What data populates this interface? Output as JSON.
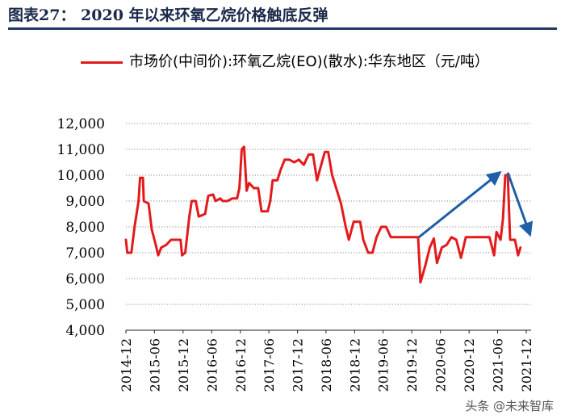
{
  "figure": {
    "title": "图表27：  2020 年以来环氧乙烷价格触底反弹"
  },
  "watermark": "头条 @未来智库",
  "colors": {
    "series": "#e31a1c",
    "arrow": "#1f5fa8",
    "grid": "#888888",
    "rule": "#1f3864"
  },
  "chart_data": {
    "type": "line",
    "title": "",
    "xlabel": "",
    "ylabel": "",
    "ylim": [
      4000,
      12000
    ],
    "yticks": [
      4000,
      5000,
      6000,
      7000,
      8000,
      9000,
      10000,
      11000,
      12000
    ],
    "ytick_labels": [
      "4,000",
      "5,000",
      "6,000",
      "7,000",
      "8,000",
      "9,000",
      "10,000",
      "11,000",
      "12,000"
    ],
    "xlim": [
      "2014-12",
      "2022-01"
    ],
    "xtick_labels": [
      "2014-12",
      "2015-06",
      "2015-12",
      "2016-06",
      "2016-12",
      "2017-06",
      "2017-12",
      "2018-06",
      "2018-12",
      "2019-06",
      "2019-12",
      "2020-06",
      "2020-12",
      "2021-06",
      "2021-12"
    ],
    "grid": "horizontal dotted",
    "legend": "top",
    "series": [
      {
        "name": "市场价(中间价):环氧乙烷(EO)(散水):华东地区（元/吨）",
        "points": [
          [
            "2014-12-01",
            7500
          ],
          [
            "2014-12-10",
            7000
          ],
          [
            "2015-01-05",
            7000
          ],
          [
            "2015-01-25",
            8000
          ],
          [
            "2015-02-20",
            9000
          ],
          [
            "2015-03-01",
            9900
          ],
          [
            "2015-03-20",
            9900
          ],
          [
            "2015-03-25",
            9000
          ],
          [
            "2015-04-25",
            8900
          ],
          [
            "2015-05-15",
            7900
          ],
          [
            "2015-06-10",
            7300
          ],
          [
            "2015-06-25",
            6900
          ],
          [
            "2015-07-15",
            7200
          ],
          [
            "2015-08-15",
            7300
          ],
          [
            "2015-09-15",
            7500
          ],
          [
            "2015-10-15",
            7500
          ],
          [
            "2015-11-15",
            7500
          ],
          [
            "2015-11-25",
            6900
          ],
          [
            "2015-12-15",
            7000
          ],
          [
            "2016-01-10",
            8400
          ],
          [
            "2016-01-25",
            9000
          ],
          [
            "2016-02-20",
            9000
          ],
          [
            "2016-03-10",
            8400
          ],
          [
            "2016-04-20",
            8500
          ],
          [
            "2016-05-10",
            9200
          ],
          [
            "2016-06-10",
            9250
          ],
          [
            "2016-06-25",
            9000
          ],
          [
            "2016-07-25",
            9100
          ],
          [
            "2016-08-10",
            9000
          ],
          [
            "2016-09-10",
            9000
          ],
          [
            "2016-10-10",
            9100
          ],
          [
            "2016-11-10",
            9100
          ],
          [
            "2016-11-25",
            9500
          ],
          [
            "2016-12-10",
            11000
          ],
          [
            "2016-12-25",
            11100
          ],
          [
            "2017-01-10",
            9400
          ],
          [
            "2017-01-25",
            9700
          ],
          [
            "2017-02-25",
            9500
          ],
          [
            "2017-03-25",
            9500
          ],
          [
            "2017-04-15",
            8600
          ],
          [
            "2017-05-25",
            8600
          ],
          [
            "2017-06-10",
            9000
          ],
          [
            "2017-06-25",
            9800
          ],
          [
            "2017-07-25",
            9800
          ],
          [
            "2017-08-15",
            10200
          ],
          [
            "2017-09-10",
            10600
          ],
          [
            "2017-10-10",
            10600
          ],
          [
            "2017-11-10",
            10500
          ],
          [
            "2017-12-10",
            10600
          ],
          [
            "2018-01-10",
            10400
          ],
          [
            "2018-02-10",
            10800
          ],
          [
            "2018-03-10",
            10800
          ],
          [
            "2018-04-05",
            9800
          ],
          [
            "2018-05-01",
            10400
          ],
          [
            "2018-05-25",
            10900
          ],
          [
            "2018-06-15",
            10900
          ],
          [
            "2018-07-10",
            10000
          ],
          [
            "2018-08-10",
            9400
          ],
          [
            "2018-09-05",
            8900
          ],
          [
            "2018-10-05",
            8000
          ],
          [
            "2018-10-25",
            7500
          ],
          [
            "2018-11-25",
            8200
          ],
          [
            "2018-12-20",
            8200
          ],
          [
            "2019-01-05",
            8200
          ],
          [
            "2019-01-25",
            7500
          ],
          [
            "2019-02-25",
            7000
          ],
          [
            "2019-03-25",
            7000
          ],
          [
            "2019-04-20",
            7600
          ],
          [
            "2019-05-20",
            8000
          ],
          [
            "2019-06-20",
            8000
          ],
          [
            "2019-07-20",
            7600
          ],
          [
            "2019-08-20",
            7600
          ],
          [
            "2019-09-20",
            7600
          ],
          [
            "2019-10-20",
            7600
          ],
          [
            "2019-11-20",
            7600
          ],
          [
            "2019-12-10",
            7600
          ],
          [
            "2020-01-10",
            7600
          ],
          [
            "2020-01-25",
            5850
          ],
          [
            "2020-02-25",
            6500
          ],
          [
            "2020-03-25",
            7200
          ],
          [
            "2020-04-20",
            7550
          ],
          [
            "2020-05-10",
            6600
          ],
          [
            "2020-06-10",
            7200
          ],
          [
            "2020-07-10",
            7300
          ],
          [
            "2020-08-10",
            7600
          ],
          [
            "2020-09-10",
            7500
          ],
          [
            "2020-10-10",
            6800
          ],
          [
            "2020-11-10",
            7600
          ],
          [
            "2020-12-10",
            7600
          ],
          [
            "2021-01-10",
            7600
          ],
          [
            "2021-02-10",
            7600
          ],
          [
            "2021-03-10",
            7600
          ],
          [
            "2021-04-10",
            7600
          ],
          [
            "2021-05-10",
            6900
          ],
          [
            "2021-05-25",
            7800
          ],
          [
            "2021-06-20",
            7500
          ],
          [
            "2021-07-05",
            8300
          ],
          [
            "2021-07-20",
            10000
          ],
          [
            "2021-08-05",
            10000
          ],
          [
            "2021-08-20",
            7500
          ],
          [
            "2021-09-20",
            7500
          ],
          [
            "2021-10-10",
            6900
          ],
          [
            "2021-10-25",
            7200
          ]
        ]
      }
    ],
    "annotations": [
      {
        "type": "arrow",
        "direction": "up",
        "from": [
          "2020-01-15",
          7600
        ],
        "to": [
          "2021-06-15",
          10100
        ]
      },
      {
        "type": "arrow",
        "direction": "down",
        "from": [
          "2021-08-05",
          10100
        ],
        "to": [
          "2021-12-25",
          7700
        ]
      }
    ]
  }
}
